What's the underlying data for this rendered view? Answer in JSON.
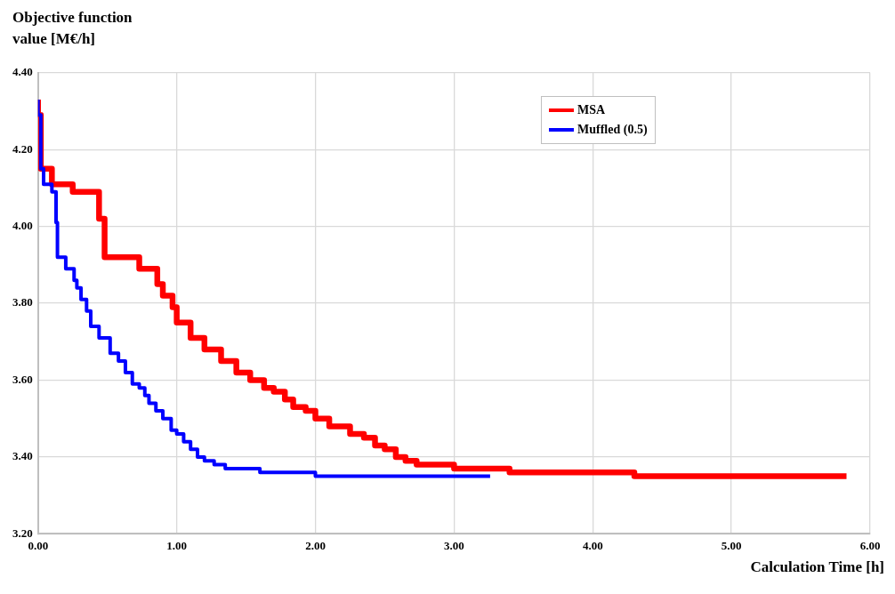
{
  "chart_data": {
    "type": "step",
    "ylabel": "Objective function value [M€/h]",
    "xlabel": "Calculation Time [h]",
    "xlim": [
      0,
      6
    ],
    "xticks": [
      {
        "value": 0,
        "label": "0.00"
      },
      {
        "value": 1,
        "label": "1.00"
      },
      {
        "value": 2,
        "label": "2.00"
      },
      {
        "value": 3,
        "label": "3.00"
      },
      {
        "value": 4,
        "label": "4.00"
      },
      {
        "value": 5,
        "label": "5.00"
      },
      {
        "value": 6,
        "label": "6.00"
      }
    ],
    "ylim": [
      3.2,
      4.4
    ],
    "yticks": [
      {
        "value": 3.2,
        "label": "3.20"
      },
      {
        "value": 3.4,
        "label": "3.40"
      },
      {
        "value": 3.6,
        "label": "3.60"
      },
      {
        "value": 3.8,
        "label": "3.80"
      },
      {
        "value": 4.0,
        "label": "4.00"
      },
      {
        "value": 4.2,
        "label": "4.20"
      },
      {
        "value": 4.4,
        "label": "4.40"
      }
    ],
    "grid": true,
    "legend": "top right",
    "marker": "none",
    "line_style": "solid",
    "series": [
      {
        "name": "MSA",
        "color": "#ff0000",
        "x": [
          0,
          0.02,
          0.1,
          0.25,
          0.44,
          0.48,
          0.73,
          0.86,
          0.9,
          0.97,
          1.0,
          1.1,
          1.2,
          1.32,
          1.43,
          1.53,
          1.63,
          1.7,
          1.78,
          1.84,
          1.93,
          2.0,
          2.1,
          2.25,
          2.35,
          2.43,
          2.5,
          2.58,
          2.65,
          2.73,
          2.85,
          3.0,
          3.25,
          3.4,
          3.6,
          4.0,
          4.3,
          4.55,
          5.35,
          5.83
        ],
        "values": [
          4.33,
          4.29,
          4.15,
          4.11,
          4.09,
          4.02,
          3.92,
          3.89,
          3.85,
          3.82,
          3.79,
          3.75,
          3.71,
          3.68,
          3.65,
          3.62,
          3.6,
          3.58,
          3.57,
          3.55,
          3.53,
          3.52,
          3.5,
          3.48,
          3.46,
          3.45,
          3.43,
          3.42,
          3.4,
          3.39,
          3.38,
          3.38,
          3.37,
          3.37,
          3.36,
          3.36,
          3.36,
          3.35,
          3.35,
          3.35
        ]
      },
      {
        "name": "Muffled (0.5)",
        "color": "#0000ff",
        "x": [
          0,
          0.02,
          0.04,
          0.1,
          0.13,
          0.14,
          0.2,
          0.26,
          0.28,
          0.31,
          0.35,
          0.38,
          0.44,
          0.52,
          0.58,
          0.63,
          0.68,
          0.73,
          0.77,
          0.8,
          0.85,
          0.9,
          0.96,
          1.0,
          1.05,
          1.1,
          1.15,
          1.2,
          1.27,
          1.35,
          1.45,
          1.6,
          1.85,
          2.0,
          2.3,
          2.65,
          3.26
        ],
        "values": [
          4.33,
          4.29,
          4.15,
          4.11,
          4.09,
          4.01,
          3.92,
          3.89,
          3.86,
          3.84,
          3.81,
          3.78,
          3.74,
          3.71,
          3.67,
          3.65,
          3.62,
          3.59,
          3.58,
          3.56,
          3.54,
          3.52,
          3.5,
          3.47,
          3.46,
          3.44,
          3.42,
          3.4,
          3.39,
          3.38,
          3.37,
          3.37,
          3.36,
          3.36,
          3.35,
          3.35,
          3.35
        ]
      }
    ]
  }
}
